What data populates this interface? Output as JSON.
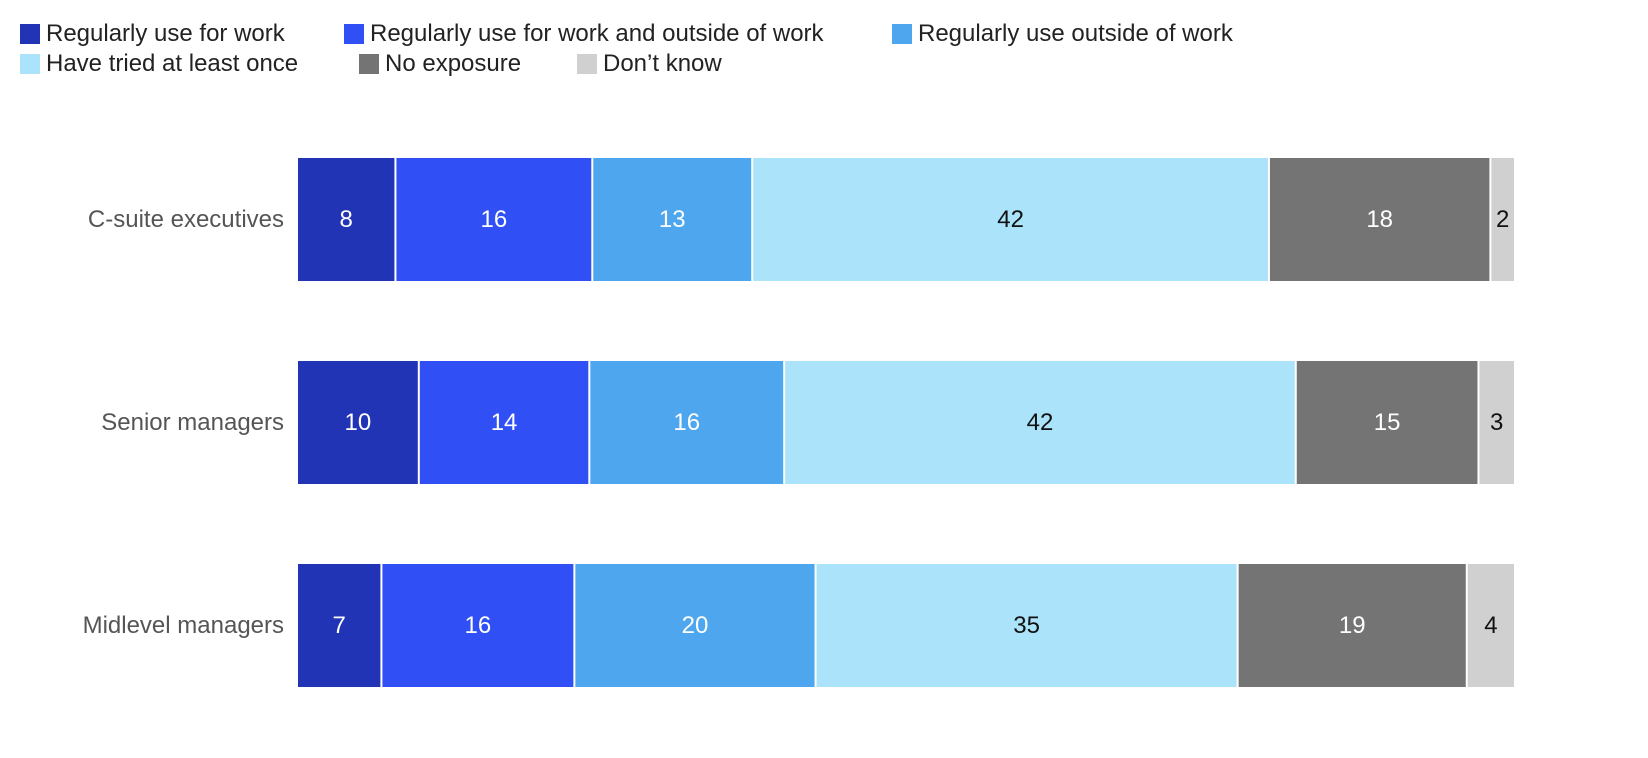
{
  "chart_data": {
    "type": "bar",
    "orientation": "horizontal",
    "stacked": true,
    "normalized": true,
    "categories": [
      "C-suite executives",
      "Senior managers",
      "Midlevel managers"
    ],
    "series": [
      {
        "name": "Regularly use for work",
        "color": "#2134b5",
        "label_color": "#ffffff",
        "values": [
          8,
          10,
          7
        ]
      },
      {
        "name": "Regularly use for work and outside of work",
        "color": "#3050f5",
        "label_color": "#ffffff",
        "values": [
          16,
          14,
          16
        ]
      },
      {
        "name": "Regularly use outside of work",
        "color": "#4ea6ee",
        "label_color": "#ffffff",
        "values": [
          13,
          16,
          20
        ]
      },
      {
        "name": "Have tried at least once",
        "color": "#aae3fa",
        "label_color": "#111111",
        "values": [
          42,
          42,
          35
        ]
      },
      {
        "name": "No exposure",
        "color": "#747474",
        "label_color": "#ffffff",
        "values": [
          18,
          15,
          19
        ]
      },
      {
        "name": "Don’t know",
        "color": "#d0d0d0",
        "label_color": "#111111",
        "values": [
          2,
          3,
          4
        ]
      }
    ],
    "legend_position": "top-left",
    "grid": false
  }
}
